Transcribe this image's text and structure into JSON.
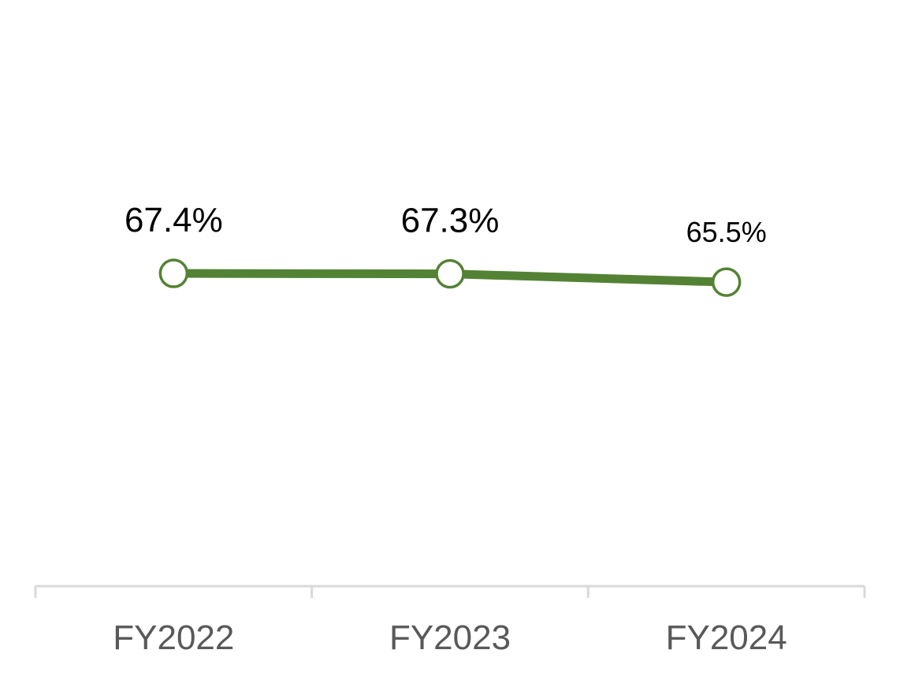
{
  "chart_data": {
    "type": "line",
    "categories": [
      "FY2022",
      "FY2023",
      "FY2024"
    ],
    "series": [
      {
        "values": [
          67.4,
          67.3,
          65.5
        ],
        "labels": [
          "67.4%",
          "67.3%",
          "65.5%"
        ]
      }
    ],
    "title": "",
    "xlabel": "",
    "ylabel": "",
    "ylim": [
      0,
      100
    ],
    "grid": false,
    "legend": "none",
    "colors": {
      "line": "#548235",
      "marker_fill": "#ffffff",
      "axis": "#d9d9d9",
      "tick_text": "#595959",
      "label_text": "#000000"
    }
  }
}
